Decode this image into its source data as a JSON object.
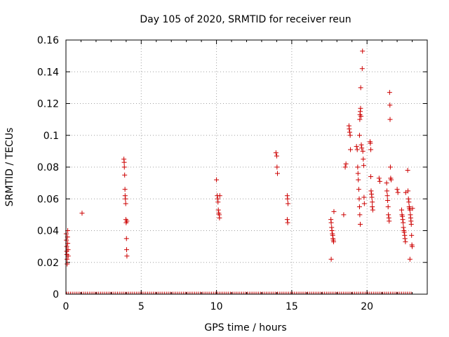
{
  "chart_data": {
    "type": "scatter",
    "title": "Day 105 of 2020, SRMTID for receiver reun",
    "xlabel": "GPS time / hours",
    "ylabel": "SRMTID / TECUs",
    "xlim": [
      0,
      24
    ],
    "ylim": [
      0,
      0.16
    ],
    "xticks": [
      0,
      5,
      10,
      15,
      20
    ],
    "xtick_labels": [
      "0",
      "5",
      "10",
      "15",
      "20"
    ],
    "yticks": [
      0,
      0.02,
      0.04,
      0.06,
      0.08,
      0.1,
      0.12,
      0.14,
      0.16
    ],
    "ytick_labels": [
      "0",
      "0.02",
      "0.04",
      "0.06",
      "0.08",
      "0.1",
      "0.12",
      "0.14",
      "0.16"
    ],
    "grid": true,
    "marker": "+",
    "color": "#cc0000",
    "series": [
      {
        "name": "SRMTID",
        "points": [
          [
            0.02,
            0.038
          ],
          [
            0.03,
            0.034
          ],
          [
            0.05,
            0.03
          ],
          [
            0.05,
            0.027
          ],
          [
            0.06,
            0.025
          ],
          [
            0.07,
            0.022
          ],
          [
            0.08,
            0.019
          ],
          [
            0.1,
            0.036
          ],
          [
            0.12,
            0.04
          ],
          [
            0.12,
            0.032
          ],
          [
            0.14,
            0.028
          ],
          [
            0.15,
            0.024
          ],
          [
            1.07,
            0.051
          ],
          [
            3.85,
            0.085
          ],
          [
            3.87,
            0.083
          ],
          [
            3.88,
            0.08
          ],
          [
            3.9,
            0.075
          ],
          [
            3.92,
            0.066
          ],
          [
            3.93,
            0.062
          ],
          [
            3.95,
            0.06
          ],
          [
            3.97,
            0.057
          ],
          [
            3.98,
            0.047
          ],
          [
            4.0,
            0.045
          ],
          [
            4.02,
            0.035
          ],
          [
            4.03,
            0.028
          ],
          [
            4.05,
            0.024
          ],
          [
            4.05,
            0.046
          ],
          [
            10.0,
            0.072
          ],
          [
            10.05,
            0.062
          ],
          [
            10.08,
            0.06
          ],
          [
            10.1,
            0.058
          ],
          [
            10.12,
            0.053
          ],
          [
            10.15,
            0.051
          ],
          [
            10.18,
            0.05
          ],
          [
            10.2,
            0.048
          ],
          [
            10.22,
            0.062
          ],
          [
            13.95,
            0.089
          ],
          [
            14.0,
            0.087
          ],
          [
            14.02,
            0.08
          ],
          [
            14.05,
            0.076
          ],
          [
            14.7,
            0.062
          ],
          [
            14.72,
            0.06
          ],
          [
            14.75,
            0.057
          ],
          [
            14.7,
            0.047
          ],
          [
            14.73,
            0.045
          ],
          [
            17.6,
            0.047
          ],
          [
            17.62,
            0.045
          ],
          [
            17.65,
            0.042
          ],
          [
            17.67,
            0.04
          ],
          [
            17.7,
            0.038
          ],
          [
            17.72,
            0.037
          ],
          [
            17.74,
            0.035
          ],
          [
            17.76,
            0.034
          ],
          [
            17.78,
            0.033
          ],
          [
            17.8,
            0.052
          ],
          [
            17.62,
            0.022
          ],
          [
            18.45,
            0.05
          ],
          [
            18.55,
            0.08
          ],
          [
            18.6,
            0.082
          ],
          [
            18.8,
            0.106
          ],
          [
            18.82,
            0.104
          ],
          [
            18.85,
            0.102
          ],
          [
            18.88,
            0.1
          ],
          [
            18.9,
            0.091
          ],
          [
            19.3,
            0.093
          ],
          [
            19.35,
            0.091
          ],
          [
            19.38,
            0.08
          ],
          [
            19.4,
            0.076
          ],
          [
            19.42,
            0.072
          ],
          [
            19.45,
            0.066
          ],
          [
            19.48,
            0.06
          ],
          [
            19.5,
            0.055
          ],
          [
            19.52,
            0.05
          ],
          [
            19.55,
            0.044
          ],
          [
            19.5,
            0.1
          ],
          [
            19.52,
            0.11
          ],
          [
            19.53,
            0.113
          ],
          [
            19.55,
            0.115
          ],
          [
            19.57,
            0.117
          ],
          [
            19.58,
            0.13
          ],
          [
            19.6,
            0.112
          ],
          [
            19.62,
            0.094
          ],
          [
            19.65,
            0.092
          ],
          [
            19.68,
            0.142
          ],
          [
            19.7,
            0.153
          ],
          [
            19.72,
            0.09
          ],
          [
            19.75,
            0.085
          ],
          [
            19.78,
            0.081
          ],
          [
            19.8,
            0.061
          ],
          [
            19.82,
            0.057
          ],
          [
            20.2,
            0.096
          ],
          [
            20.22,
            0.095
          ],
          [
            20.25,
            0.091
          ],
          [
            20.25,
            0.074
          ],
          [
            20.27,
            0.065
          ],
          [
            20.3,
            0.063
          ],
          [
            20.32,
            0.061
          ],
          [
            20.35,
            0.058
          ],
          [
            20.35,
            0.055
          ],
          [
            20.38,
            0.053
          ],
          [
            20.8,
            0.073
          ],
          [
            20.85,
            0.071
          ],
          [
            21.3,
            0.07
          ],
          [
            21.32,
            0.065
          ],
          [
            21.35,
            0.062
          ],
          [
            21.37,
            0.059
          ],
          [
            21.4,
            0.055
          ],
          [
            21.42,
            0.05
          ],
          [
            21.45,
            0.048
          ],
          [
            21.47,
            0.046
          ],
          [
            21.5,
            0.127
          ],
          [
            21.52,
            0.119
          ],
          [
            21.53,
            0.11
          ],
          [
            21.55,
            0.08
          ],
          [
            21.57,
            0.073
          ],
          [
            21.6,
            0.072
          ],
          [
            22.0,
            0.066
          ],
          [
            22.05,
            0.064
          ],
          [
            22.3,
            0.053
          ],
          [
            22.32,
            0.05
          ],
          [
            22.35,
            0.049
          ],
          [
            22.37,
            0.047
          ],
          [
            22.4,
            0.045
          ],
          [
            22.42,
            0.042
          ],
          [
            22.45,
            0.04
          ],
          [
            22.47,
            0.039
          ],
          [
            22.5,
            0.037
          ],
          [
            22.52,
            0.035
          ],
          [
            22.55,
            0.033
          ],
          [
            22.57,
            0.064
          ],
          [
            22.7,
            0.078
          ],
          [
            22.72,
            0.065
          ],
          [
            22.75,
            0.06
          ],
          [
            22.78,
            0.058
          ],
          [
            22.8,
            0.055
          ],
          [
            22.82,
            0.054
          ],
          [
            22.85,
            0.053
          ],
          [
            22.88,
            0.05
          ],
          [
            22.9,
            0.048
          ],
          [
            22.92,
            0.046
          ],
          [
            22.94,
            0.044
          ],
          [
            22.96,
            0.037
          ],
          [
            22.98,
            0.031
          ],
          [
            23.0,
            0.03
          ],
          [
            22.85,
            0.022
          ],
          [
            23.02,
            0.054
          ]
        ]
      }
    ]
  }
}
